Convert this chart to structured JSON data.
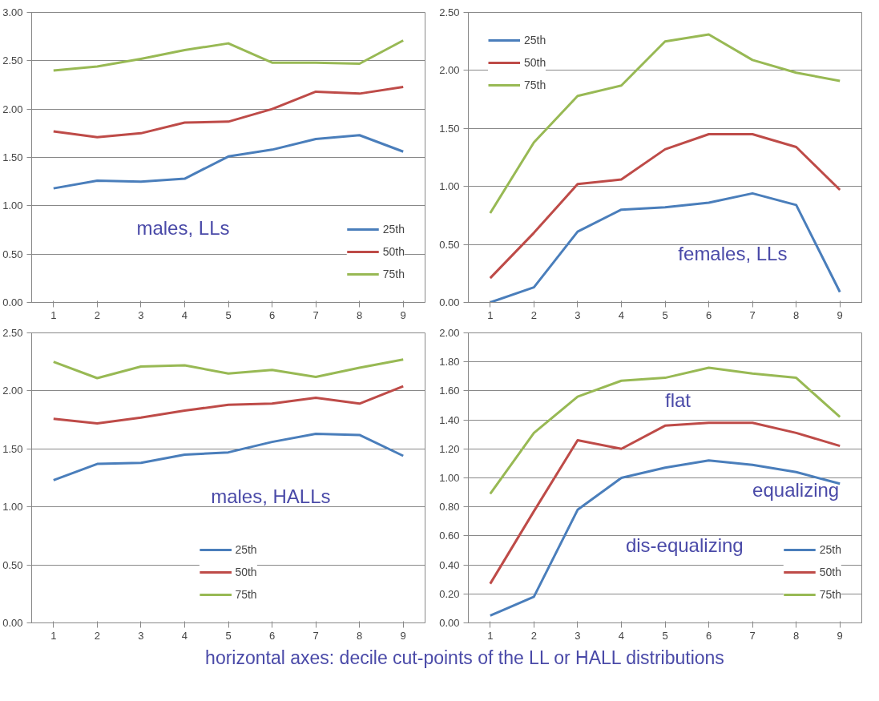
{
  "chart_data": [
    {
      "type": "line",
      "categories": [
        "1",
        "2",
        "3",
        "4",
        "5",
        "6",
        "7",
        "8",
        "9"
      ],
      "ylim": [
        0,
        3
      ],
      "yticks": [
        {
          "value": 0,
          "label": "0.00"
        },
        {
          "value": 0.5,
          "label": "0.50"
        },
        {
          "value": 1,
          "label": "1.00"
        },
        {
          "value": 1.5,
          "label": "1.50"
        },
        {
          "value": 2,
          "label": "2.00"
        },
        {
          "value": 2.5,
          "label": "2.50"
        },
        {
          "value": 3,
          "label": "3.00"
        }
      ],
      "grid": "y",
      "legend": "bottom right",
      "annotations": [
        "males, LLs"
      ],
      "series": [
        {
          "name": "25th",
          "color": "#4a7ebb",
          "values": [
            1.18,
            1.26,
            1.25,
            1.28,
            1.51,
            1.58,
            1.69,
            1.73,
            1.56
          ]
        },
        {
          "name": "50th",
          "color": "#be4b48",
          "values": [
            1.77,
            1.71,
            1.75,
            1.86,
            1.87,
            2.0,
            2.18,
            2.16,
            2.23
          ]
        },
        {
          "name": "75th",
          "color": "#98b954",
          "values": [
            2.4,
            2.44,
            2.52,
            2.61,
            2.68,
            2.48,
            2.48,
            2.47,
            2.71
          ]
        }
      ]
    },
    {
      "type": "line",
      "categories": [
        "1",
        "2",
        "3",
        "4",
        "5",
        "6",
        "7",
        "8",
        "9"
      ],
      "ylim": [
        0,
        2.5
      ],
      "yticks": [
        {
          "value": 0,
          "label": "0.00"
        },
        {
          "value": 0.5,
          "label": "0.50"
        },
        {
          "value": 1,
          "label": "1.00"
        },
        {
          "value": 1.5,
          "label": "1.50"
        },
        {
          "value": 2,
          "label": "2.00"
        },
        {
          "value": 2.5,
          "label": "2.50"
        }
      ],
      "grid": "y",
      "legend": "top left",
      "annotations": [
        "females, LLs"
      ],
      "series": [
        {
          "name": "25th",
          "color": "#4a7ebb",
          "values": [
            0.0,
            0.13,
            0.61,
            0.8,
            0.82,
            0.86,
            0.94,
            0.84,
            0.09
          ]
        },
        {
          "name": "50th",
          "color": "#be4b48",
          "values": [
            0.21,
            0.6,
            1.02,
            1.06,
            1.32,
            1.45,
            1.45,
            1.34,
            0.97
          ]
        },
        {
          "name": "75th",
          "color": "#98b954",
          "values": [
            0.77,
            1.38,
            1.78,
            1.87,
            2.25,
            2.31,
            2.09,
            1.98,
            1.91
          ]
        }
      ]
    },
    {
      "type": "line",
      "categories": [
        "1",
        "2",
        "3",
        "4",
        "5",
        "6",
        "7",
        "8",
        "9"
      ],
      "ylim": [
        0,
        2.5
      ],
      "yticks": [
        {
          "value": 0,
          "label": "0.00"
        },
        {
          "value": 0.5,
          "label": "0.50"
        },
        {
          "value": 1,
          "label": "1.00"
        },
        {
          "value": 1.5,
          "label": "1.50"
        },
        {
          "value": 2,
          "label": "2.00"
        },
        {
          "value": 2.5,
          "label": "2.50"
        }
      ],
      "grid": "y",
      "legend": "bottom",
      "annotations": [
        "males, HALLs"
      ],
      "series": [
        {
          "name": "25th",
          "color": "#4a7ebb",
          "values": [
            1.23,
            1.37,
            1.38,
            1.45,
            1.47,
            1.56,
            1.63,
            1.62,
            1.44
          ]
        },
        {
          "name": "50th",
          "color": "#be4b48",
          "values": [
            1.76,
            1.72,
            1.77,
            1.83,
            1.88,
            1.89,
            1.94,
            1.89,
            2.04
          ]
        },
        {
          "name": "75th",
          "color": "#98b954",
          "values": [
            2.25,
            2.11,
            2.21,
            2.22,
            2.15,
            2.18,
            2.12,
            2.2,
            2.27
          ]
        }
      ]
    },
    {
      "type": "line",
      "categories": [
        "1",
        "2",
        "3",
        "4",
        "5",
        "6",
        "7",
        "8",
        "9"
      ],
      "ylim": [
        0,
        2
      ],
      "yticks": [
        {
          "value": 0,
          "label": "0.00"
        },
        {
          "value": 0.2,
          "label": "0.20"
        },
        {
          "value": 0.4,
          "label": "0.40"
        },
        {
          "value": 0.6,
          "label": "0.60"
        },
        {
          "value": 0.8,
          "label": "0.80"
        },
        {
          "value": 1,
          "label": "1.00"
        },
        {
          "value": 1.2,
          "label": "1.20"
        },
        {
          "value": 1.4,
          "label": "1.40"
        },
        {
          "value": 1.6,
          "label": "1.60"
        },
        {
          "value": 1.8,
          "label": "1.80"
        },
        {
          "value": 2,
          "label": "2.00"
        }
      ],
      "grid": "y",
      "legend": "bottom right",
      "annotations": [
        "flat",
        "equalizing",
        "dis-equalizing",
        "horizontal axes: decile cut-points of the LL or HALL distributions"
      ],
      "series": [
        {
          "name": "25th",
          "color": "#4a7ebb",
          "values": [
            0.05,
            0.18,
            0.78,
            1.0,
            1.07,
            1.12,
            1.09,
            1.04,
            0.96
          ]
        },
        {
          "name": "50th",
          "color": "#be4b48",
          "values": [
            0.27,
            0.77,
            1.26,
            1.2,
            1.36,
            1.38,
            1.38,
            1.31,
            1.22
          ]
        },
        {
          "name": "75th",
          "color": "#98b954",
          "values": [
            0.89,
            1.31,
            1.56,
            1.67,
            1.69,
            1.76,
            1.72,
            1.69,
            1.42
          ]
        }
      ]
    }
  ]
}
